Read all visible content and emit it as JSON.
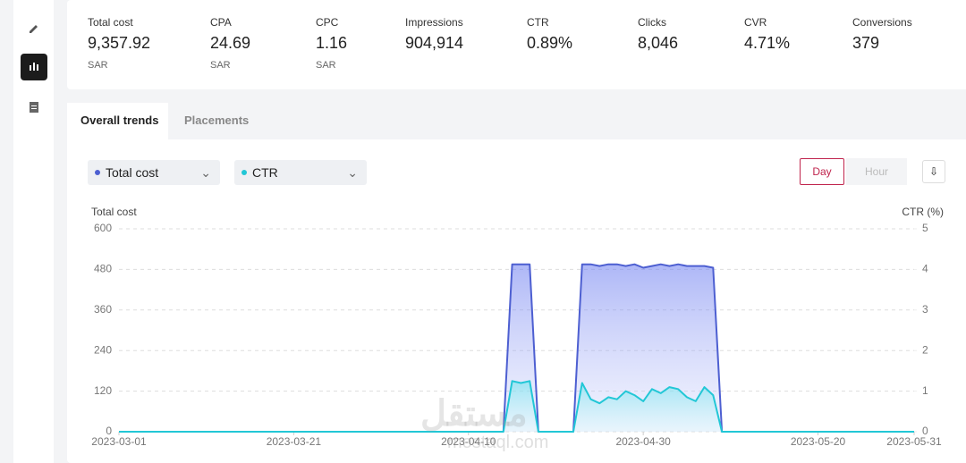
{
  "metrics": [
    {
      "label": "Total cost",
      "value": "9,357.92",
      "unit": "SAR"
    },
    {
      "label": "CPA",
      "value": "24.69",
      "unit": "SAR"
    },
    {
      "label": "CPC",
      "value": "1.16",
      "unit": "SAR"
    },
    {
      "label": "Impressions",
      "value": "904,914"
    },
    {
      "label": "CTR",
      "value": "0.89%"
    },
    {
      "label": "Clicks",
      "value": "8,046"
    },
    {
      "label": "CVR",
      "value": "4.71%"
    },
    {
      "label": "Conversions",
      "value": "379"
    }
  ],
  "tabs": [
    "Overall trends",
    "Placements"
  ],
  "controls": {
    "day": "Day",
    "hour": "Hour"
  },
  "watermark": {
    "arabic": "مستقل",
    "latin": "mostaql.com"
  },
  "chart_data": {
    "type": "line",
    "y_label": "Total cost",
    "y2_label": "CTR (%)",
    "x": [
      "2023-03-01",
      "2023-04-14",
      "2023-04-15",
      "2023-04-16",
      "2023-04-17",
      "2023-04-18",
      "2023-04-22",
      "2023-04-23",
      "2023-04-24",
      "2023-04-25",
      "2023-04-26",
      "2023-04-27",
      "2023-04-28",
      "2023-04-29",
      "2023-04-30",
      "2023-05-01",
      "2023-05-02",
      "2023-05-03",
      "2023-05-04",
      "2023-05-05",
      "2023-05-06",
      "2023-05-07",
      "2023-05-08",
      "2023-05-09",
      "2023-05-31"
    ],
    "series": [
      {
        "name": "Total cost",
        "color": "#4d5fd1",
        "values": [
          0,
          0,
          495,
          495,
          495,
          0,
          0,
          495,
          495,
          490,
          495,
          495,
          490,
          495,
          485,
          490,
          495,
          490,
          495,
          490,
          490,
          490,
          485,
          0,
          0
        ]
      },
      {
        "name": "CTR",
        "color": "#22c7d6",
        "axis": "y2",
        "values": [
          0,
          0,
          1.25,
          1.2,
          1.25,
          0,
          0,
          1.2,
          0.8,
          0.7,
          0.85,
          0.8,
          1.0,
          0.9,
          0.75,
          1.05,
          0.95,
          1.1,
          1.05,
          0.85,
          0.75,
          1.1,
          0.9,
          0,
          0
        ]
      }
    ],
    "xlim": [
      "2023-03-01",
      "2023-05-31"
    ],
    "xticks": [
      "2023-03-01",
      "2023-03-21",
      "2023-04-10",
      "2023-04-30",
      "2023-05-20",
      "2023-05-31"
    ],
    "ylim": [
      0,
      600
    ],
    "yticks": [
      0,
      120,
      240,
      360,
      480,
      600
    ],
    "y2lim": [
      0,
      5
    ],
    "y2ticks": [
      0,
      1,
      2,
      3,
      4,
      5
    ],
    "grid": true
  }
}
